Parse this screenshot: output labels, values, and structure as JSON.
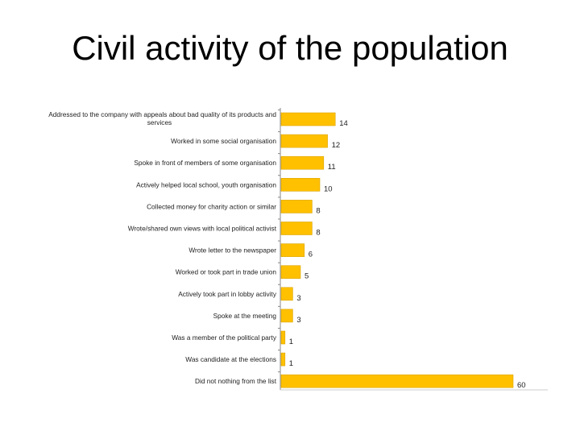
{
  "slide": {
    "title": "Civil activity of the population"
  },
  "chart_data": {
    "type": "bar",
    "orientation": "horizontal",
    "categories": [
      [
        "Addressed to the company with appeals about bad quality of its products and",
        "services"
      ],
      [
        "Worked in some social organisation"
      ],
      [
        "Spoke in front of members of some organisation"
      ],
      [
        "Actively helped local school, youth organisation"
      ],
      [
        "Collected money for charity action or similar"
      ],
      [
        "Wrote/shared own views with local political activist"
      ],
      [
        "Wrote letter to the newspaper"
      ],
      [
        "Worked or took part in trade union"
      ],
      [
        "Actively took part in lobby activity"
      ],
      [
        "Spoke at the meeting"
      ],
      [
        "Was a member of the political party"
      ],
      [
        "Was candidate at the elections"
      ],
      [
        "Did not nothing from the list"
      ]
    ],
    "values": [
      14,
      12,
      11,
      10,
      8,
      8,
      6,
      5,
      3,
      3,
      1,
      1,
      60
    ],
    "value_labels": [
      "14",
      "12",
      "11",
      "10",
      "8",
      "8",
      "6",
      "5",
      "3",
      "3",
      "1",
      "1",
      "60"
    ],
    "xlim": [
      0,
      60
    ],
    "bar_color": "#FFC000",
    "bar_edge_color": "#D9A400",
    "axis_color": "#888888",
    "grid": false,
    "legend": "none",
    "title": "",
    "xlabel": "",
    "ylabel": ""
  }
}
